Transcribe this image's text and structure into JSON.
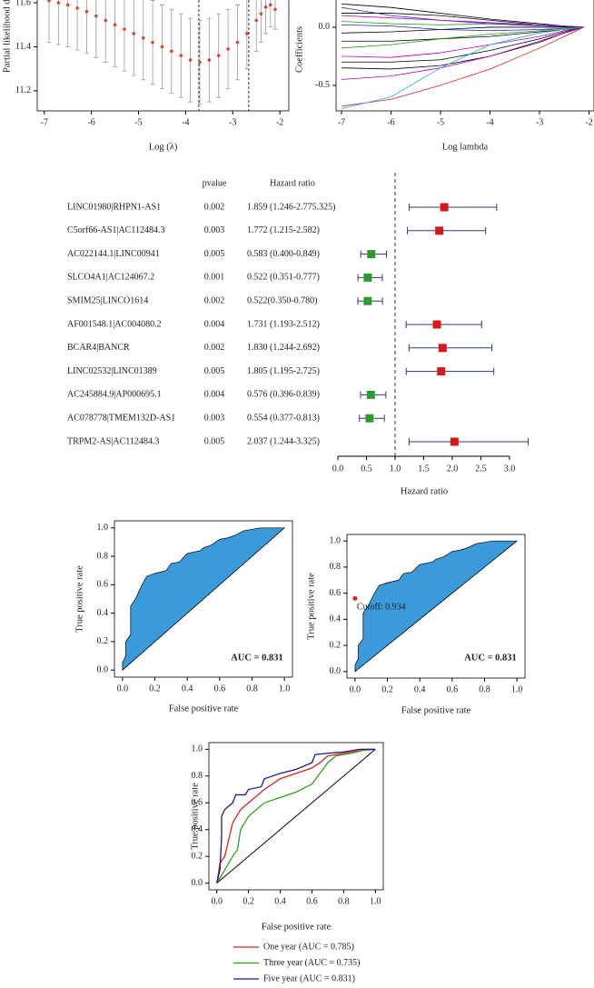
{
  "chart_data": [
    {
      "type": "scatter",
      "x_label": "Log (λ)",
      "y_label": "Partial likelihood dev",
      "x": [
        -6.9,
        -6.7,
        -6.5,
        -6.3,
        -6.1,
        -5.9,
        -5.7,
        -5.5,
        -5.3,
        -5.1,
        -4.9,
        -4.7,
        -4.5,
        -4.3,
        -4.1,
        -3.9,
        -3.7,
        -3.5,
        -3.3,
        -3.1,
        -2.9,
        -2.7,
        -2.5,
        -2.4,
        -2.3,
        -2.2,
        -2.1
      ],
      "values": [
        11.61,
        11.6,
        11.59,
        11.575,
        11.56,
        11.54,
        11.52,
        11.5,
        11.48,
        11.46,
        11.44,
        11.42,
        11.4,
        11.38,
        11.36,
        11.34,
        11.33,
        11.34,
        11.36,
        11.39,
        11.42,
        11.46,
        11.52,
        11.55,
        11.58,
        11.59,
        11.57
      ],
      "errors": [
        0.19,
        0.19,
        0.19,
        0.19,
        0.19,
        0.19,
        0.19,
        0.19,
        0.19,
        0.19,
        0.19,
        0.19,
        0.19,
        0.19,
        0.19,
        0.19,
        0.19,
        0.19,
        0.19,
        0.18,
        0.17,
        0.16,
        0.14,
        0.13,
        0.12,
        0.1,
        0.09
      ],
      "color": "#e8412c",
      "error_color": "#9a9a9a",
      "vlines": [
        -3.72,
        -2.66
      ],
      "xlim": [
        -7.15,
        -1.81
      ],
      "ylim": [
        11.109,
        11.633
      ],
      "xticks": [
        -7,
        -6,
        -5,
        -4,
        -3,
        -2
      ],
      "yticks": [
        11.2,
        11.4,
        11.6
      ]
    },
    {
      "type": "line",
      "x_label": "Log lambda",
      "y_label": "Coefficients",
      "x": [
        -7,
        -6,
        -5,
        -4,
        -3,
        -2.5,
        -2.1
      ],
      "series": [
        {
          "color": "#000000",
          "values": [
            0.2,
            0.17,
            0.12,
            0.07,
            0.03,
            0.01,
            0
          ]
        },
        {
          "color": "#000000",
          "values": [
            0.12,
            0.12,
            0.1,
            0.06,
            0.02,
            0.01,
            0
          ]
        },
        {
          "color": "#22a022",
          "values": [
            0.05,
            0.03,
            0.02,
            0.03,
            0.02,
            0.01,
            0
          ]
        },
        {
          "color": "#2020d0",
          "values": [
            0.17,
            0.1,
            0.06,
            0.03,
            0.01,
            0.005,
            0
          ]
        },
        {
          "color": "#c000c0",
          "values": [
            0.1,
            0.08,
            0.06,
            0.04,
            0.02,
            0.01,
            0
          ]
        },
        {
          "color": "#000000",
          "values": [
            -0.05,
            -0.04,
            -0.02,
            0,
            0,
            0,
            0
          ]
        },
        {
          "color": "#2020d0",
          "values": [
            0.02,
            0.01,
            -0.02,
            -0.03,
            -0.02,
            -0.01,
            0
          ]
        },
        {
          "color": "#000000",
          "values": [
            -0.12,
            -0.12,
            -0.1,
            -0.08,
            -0.04,
            -0.02,
            0
          ]
        },
        {
          "color": "#22a022",
          "values": [
            -0.18,
            -0.15,
            -0.1,
            -0.06,
            -0.03,
            -0.01,
            0
          ]
        },
        {
          "color": "#c000c0",
          "values": [
            -0.25,
            -0.26,
            -0.22,
            -0.15,
            -0.08,
            -0.03,
            0
          ]
        },
        {
          "color": "#000000",
          "values": [
            -0.3,
            -0.3,
            -0.28,
            -0.2,
            -0.1,
            -0.04,
            0
          ]
        },
        {
          "color": "#000000",
          "values": [
            -0.35,
            -0.36,
            -0.33,
            -0.25,
            -0.13,
            -0.05,
            0
          ]
        },
        {
          "color": "#c000c0",
          "values": [
            -0.45,
            -0.42,
            -0.35,
            -0.25,
            -0.12,
            -0.05,
            0
          ]
        },
        {
          "color": "#e02020",
          "values": [
            -0.68,
            -0.62,
            -0.5,
            -0.36,
            -0.18,
            -0.08,
            0
          ]
        },
        {
          "color": "#20b0e0",
          "values": [
            -0.7,
            -0.6,
            -0.35,
            -0.15,
            -0.05,
            -0.02,
            0
          ]
        }
      ],
      "xlim": [
        -7.11,
        -1.9
      ],
      "ylim": [
        -0.72,
        0.273
      ],
      "xticks": [
        -7,
        -6,
        -5,
        -4,
        -3,
        -2
      ],
      "yticks": [
        -0.5,
        {
          "value": 0,
          "label": "0.0"
        }
      ]
    },
    {
      "type": "forest",
      "header_p": "pvalue",
      "header_hr": "Hazard ratio",
      "x_label": "Hazard ratio",
      "names": [
        "LINC01980|RHPN1-AS1",
        "C5orf66-AS1|AC112484.3",
        "AC022144.1|LINC00941",
        "SLCO4A1|AC124067.2",
        "SMIM25|LINCO1614",
        "AF001548.1|AC004080.2",
        "BCAR4|BANCR",
        "LINC02532|LINC01389",
        "AC245884.9|AP000695.1",
        "AC078778|TMEM132D-AS1",
        "TRPM2-AS|AC112484.3"
      ],
      "pvalues": [
        "0.002",
        "0.003",
        "0.005",
        "0.001",
        "0.002",
        "0.004",
        "0.002",
        "0.005",
        "0.004",
        "0.003",
        "0.005"
      ],
      "hr_text": [
        "1.859 (1.246-2.775.325)",
        "1.772 (1.215-2.582)",
        "0.583 (0.400-0.849)",
        "0.522 (0.351-0.777)",
        "0.522(0.350-0.780)",
        "1.731 (1.193-2.512)",
        "1.830 (1.244-2.692)",
        "1.805 (1.195-2.725)",
        "0.576 (0.396-0.839)",
        "0.554 (0.377-0.813)",
        "2.037 (1.244-3.325)"
      ],
      "hr": [
        1.859,
        1.772,
        0.583,
        0.522,
        0.522,
        1.731,
        1.83,
        1.805,
        0.576,
        0.554,
        2.037
      ],
      "lo": [
        1.246,
        1.215,
        0.4,
        0.351,
        0.35,
        1.193,
        1.244,
        1.195,
        0.396,
        0.377,
        1.244
      ],
      "hi": [
        2.775,
        2.582,
        0.849,
        0.777,
        0.78,
        2.512,
        2.692,
        2.725,
        0.839,
        0.813,
        3.325
      ],
      "ref_line": 1,
      "colors": {
        "above": "#d7191c",
        "below": "#2e9a2e"
      },
      "ci_color": "#2e3a87",
      "xlim": [
        0,
        3
      ],
      "xticks": [
        {
          "value": 0,
          "label": "0.0"
        },
        0.5,
        {
          "value": 1,
          "label": "1.0"
        },
        1.5,
        {
          "value": 2,
          "label": "2.0"
        },
        2.5,
        {
          "value": 3,
          "label": "3.0"
        }
      ]
    },
    {
      "type": "area",
      "x_label": "False positive rate",
      "y_label": "True positive rate",
      "annotation": "AUC = 0.831",
      "x": [
        0,
        0,
        0.02,
        0.02,
        0.05,
        0.05,
        0.08,
        0.1,
        0.12,
        0.15,
        0.2,
        0.27,
        0.3,
        0.35,
        0.4,
        0.48,
        0.5,
        0.55,
        0.6,
        0.65,
        0.7,
        0.75,
        0.85,
        1
      ],
      "values": [
        0,
        0.05,
        0.1,
        0.2,
        0.25,
        0.45,
        0.5,
        0.55,
        0.6,
        0.66,
        0.68,
        0.7,
        0.75,
        0.76,
        0.82,
        0.84,
        0.86,
        0.88,
        0.92,
        0.93,
        0.95,
        0.98,
        1,
        1
      ],
      "color": "#3b9ad9",
      "diagonal": "dashed",
      "xlim": [
        -0.05,
        1.05
      ],
      "ylim": [
        -0.05,
        1.05
      ],
      "xticks": [
        {
          "value": 0,
          "label": "0.0"
        },
        0.2,
        0.4,
        0.6,
        0.8,
        {
          "value": 1,
          "label": "1.0"
        }
      ],
      "yticks": [
        {
          "value": 0,
          "label": "0.0"
        },
        0.2,
        0.4,
        0.6,
        0.8,
        {
          "value": 1,
          "label": "1.0"
        }
      ]
    },
    {
      "type": "area",
      "x_label": "False positive rate",
      "y_label": "True positive rate",
      "annotation": "AUC = 0.831",
      "x": [
        0,
        0,
        0.02,
        0.02,
        0.05,
        0.05,
        0.08,
        0.1,
        0.12,
        0.15,
        0.2,
        0.27,
        0.3,
        0.35,
        0.4,
        0.48,
        0.5,
        0.55,
        0.6,
        0.65,
        0.7,
        0.75,
        0.85,
        1
      ],
      "values": [
        0,
        0.05,
        0.1,
        0.2,
        0.25,
        0.45,
        0.5,
        0.55,
        0.6,
        0.66,
        0.68,
        0.7,
        0.75,
        0.76,
        0.82,
        0.84,
        0.86,
        0.88,
        0.92,
        0.93,
        0.95,
        0.98,
        1,
        1
      ],
      "cutoff": {
        "x": 0,
        "y": 0.56,
        "label": "Cutoff: 0.934"
      },
      "cutoff_color": "#e02020",
      "color": "#3b9ad9",
      "diagonal": "dashed",
      "xlim": [
        -0.05,
        1.05
      ],
      "ylim": [
        -0.05,
        1.05
      ],
      "xticks": [
        {
          "value": 0,
          "label": "0.0"
        },
        0.2,
        0.4,
        0.6,
        0.8,
        {
          "value": 1,
          "label": "1.0"
        }
      ],
      "yticks": [
        {
          "value": 0,
          "label": "0.0"
        },
        0.2,
        0.4,
        0.6,
        0.8,
        {
          "value": 1,
          "label": "1.0"
        }
      ]
    },
    {
      "type": "line",
      "x_label": "False positive rate",
      "y_label": "True positive rate",
      "diagonal": "solid",
      "series": [
        {
          "name": "One year (AUC = 0.785)",
          "color": "#e02020",
          "x": [
            0,
            0.02,
            0.05,
            0.08,
            0.1,
            0.15,
            0.2,
            0.25,
            0.3,
            0.4,
            0.5,
            0.6,
            0.65,
            0.7,
            0.8,
            0.9,
            1
          ],
          "values": [
            0,
            0.15,
            0.2,
            0.35,
            0.45,
            0.55,
            0.6,
            0.65,
            0.7,
            0.78,
            0.82,
            0.86,
            0.9,
            0.95,
            0.97,
            0.99,
            1
          ]
        },
        {
          "name": "Three year (AUC = 0.735)",
          "color": "#30a020",
          "x": [
            0,
            0.05,
            0.1,
            0.13,
            0.15,
            0.2,
            0.3,
            0.4,
            0.5,
            0.6,
            0.65,
            0.7,
            0.75,
            0.85,
            0.95,
            1
          ],
          "values": [
            0,
            0.1,
            0.2,
            0.25,
            0.4,
            0.5,
            0.6,
            0.64,
            0.68,
            0.74,
            0.82,
            0.9,
            0.95,
            0.97,
            1,
            1
          ]
        },
        {
          "name": "Five year (AUC = 0.831)",
          "color": "#1a1a90",
          "x": [
            0,
            0.02,
            0.03,
            0.03,
            0.05,
            0.1,
            0.12,
            0.18,
            0.2,
            0.28,
            0.3,
            0.35,
            0.4,
            0.5,
            0.6,
            0.62,
            0.7,
            0.8,
            0.9,
            1
          ],
          "values": [
            0,
            0.1,
            0.35,
            0.5,
            0.55,
            0.6,
            0.66,
            0.66,
            0.7,
            0.72,
            0.78,
            0.8,
            0.82,
            0.85,
            0.9,
            0.96,
            0.97,
            0.98,
            1,
            1
          ]
        }
      ],
      "xlim": [
        -0.05,
        1.05
      ],
      "ylim": [
        -0.05,
        1.05
      ],
      "xticks": [
        {
          "value": 0,
          "label": "0.0"
        },
        0.2,
        0.4,
        0.6,
        0.8,
        {
          "value": 1,
          "label": "1.0"
        }
      ],
      "yticks": [
        {
          "value": 0,
          "label": "0.0"
        },
        0.2,
        0.4,
        0.6,
        0.8,
        {
          "value": 1,
          "label": "1.0"
        }
      ]
    }
  ]
}
